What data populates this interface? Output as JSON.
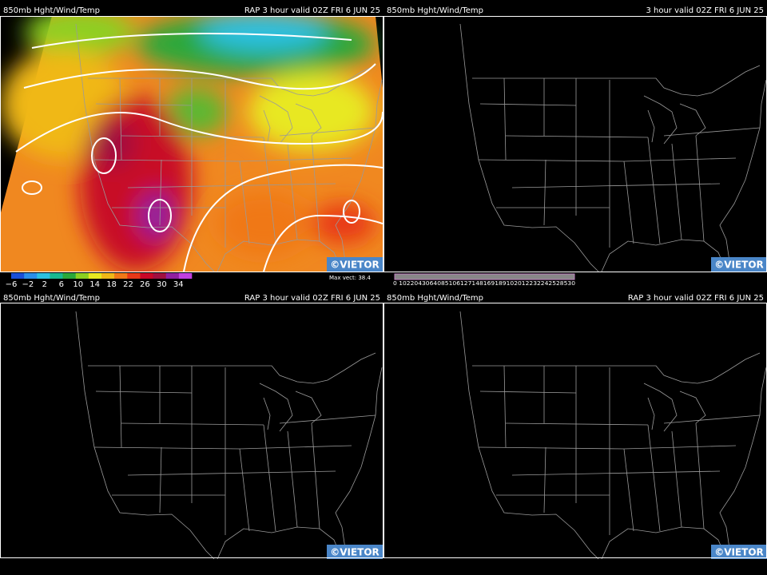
{
  "panels": [
    {
      "title": "850mb Hght/Wind/Temp",
      "valid": "RAP 3 hour valid 02Z FRI  6 JUN 25",
      "credit": "©VIETOR"
    },
    {
      "title": "850mb Hght/Wind/Temp",
      "valid": "3 hour valid 02Z FRI  6 JUN 25",
      "credit": "©VIETOR"
    },
    {
      "title": "850mb Hght/Wind/Temp",
      "valid": "RAP 3 hour valid 02Z FRI  6 JUN 25",
      "credit": "©VIETOR"
    },
    {
      "title": "850mb Hght/Wind/Temp",
      "valid": "RAP 3 hour valid 02Z FRI  6 JUN 25",
      "credit": "©VIETOR"
    }
  ],
  "temp_legend": {
    "labels": [
      "−6",
      "−2",
      "2",
      "6",
      "10",
      "14",
      "18",
      "22",
      "26",
      "30",
      "34"
    ],
    "colors": [
      "#1a4fd8",
      "#2a8ee8",
      "#2bc0e0",
      "#18b890",
      "#2aa83a",
      "#8cd020",
      "#e8e820",
      "#f0b818",
      "#f07818",
      "#e83818",
      "#c80828",
      "#a01040",
      "#9020a0",
      "#c040e0"
    ]
  },
  "wind_legend": {
    "max": "Max vect: 38.4",
    "scale": "0 1022043064085106127148169189102012232242528530"
  }
}
